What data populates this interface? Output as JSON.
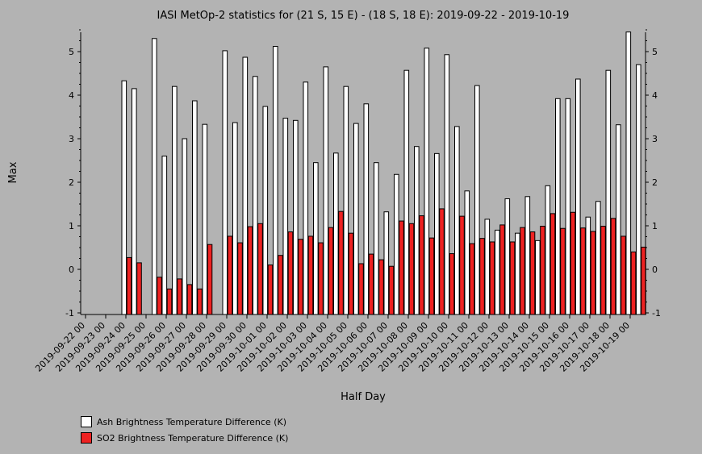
{
  "chart_data": {
    "type": "bar",
    "title": "IASI MetOp-2 statistics for (21 S, 15 E) - (18 S, 18 E): 2019-09-22 - 2019-10-19",
    "xlabel": "Half Day",
    "ylabel": "Max",
    "ylim": [
      -1,
      5.5
    ],
    "yticks": [
      -1,
      0,
      1,
      2,
      3,
      4,
      5
    ],
    "x_tick_labels": [
      "2019-09-22 00",
      "2019-09-23 00",
      "2019-09-24 00",
      "2019-09-25 00",
      "2019-09-26 00",
      "2019-09-27 00",
      "2019-09-28 00",
      "2019-09-29 00",
      "2019-09-30 00",
      "2019-10-01 00",
      "2019-10-02 00",
      "2019-10-03 00",
      "2019-10-04 00",
      "2019-10-05 00",
      "2019-10-06 00",
      "2019-10-07 00",
      "2019-10-08 00",
      "2019-10-09 00",
      "2019-10-10 00",
      "2019-10-11 00",
      "2019-10-12 00",
      "2019-10-13 00",
      "2019-10-14 00",
      "2019-10-15 00",
      "2019-10-16 00",
      "2019-10-17 00",
      "2019-10-18 00",
      "2019-10-19 00"
    ],
    "series": [
      {
        "name": "Ash Brightness Temperature Difference (K)",
        "color": "#ffffff",
        "values": [
          null,
          null,
          null,
          null,
          4.33,
          4.15,
          null,
          5.3,
          2.6,
          4.2,
          3.0,
          3.87,
          3.33,
          null,
          5.02,
          3.37,
          4.87,
          4.43,
          3.74,
          5.12,
          3.47,
          3.42,
          4.3,
          2.45,
          4.65,
          2.67,
          4.2,
          3.35,
          3.8,
          2.45,
          1.32,
          2.18,
          4.57,
          2.82,
          5.08,
          2.66,
          4.93,
          3.28,
          1.8,
          4.22,
          1.15,
          0.9,
          1.62,
          0.83,
          1.67,
          0.66,
          1.92,
          3.92,
          3.92,
          4.37,
          1.2,
          1.56,
          4.57,
          3.32,
          5.45,
          4.7
        ]
      },
      {
        "name": "SO2 Brightness Temperature Difference (K)",
        "color": "#ee2222",
        "values": [
          null,
          null,
          null,
          null,
          0.27,
          0.15,
          null,
          -0.18,
          -0.45,
          -0.22,
          -0.35,
          -0.45,
          0.57,
          null,
          0.76,
          0.61,
          0.98,
          1.05,
          0.1,
          0.32,
          0.86,
          0.69,
          0.76,
          0.61,
          0.96,
          1.33,
          0.83,
          0.13,
          0.35,
          0.22,
          0.07,
          1.11,
          1.05,
          1.23,
          0.72,
          1.39,
          0.36,
          1.22,
          0.59,
          0.71,
          0.63,
          1.02,
          0.63,
          0.96,
          0.86,
          0.99,
          1.28,
          0.94,
          1.31,
          0.95,
          0.87,
          0.99,
          1.17,
          0.76,
          0.4,
          0.51
        ]
      }
    ],
    "legend_position": "bottom-left",
    "grid": false
  }
}
